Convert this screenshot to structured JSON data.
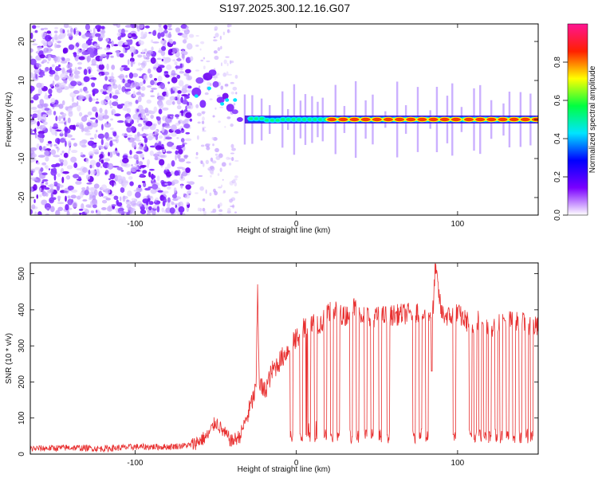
{
  "title": "S197.2025.300.12.16.G07",
  "chart_data": [
    {
      "type": "heatmap",
      "xlabel": "Height of straight line (km)",
      "ylabel": "Frequency (Hz)",
      "xlim": [
        -165,
        150
      ],
      "ylim": [
        -24.5,
        24.5
      ],
      "xticks": [
        -100,
        0,
        100
      ],
      "yticks": [
        -20,
        -10,
        0,
        10,
        20
      ],
      "colorbar": {
        "label": "Normalized spectral amplitude",
        "range": [
          0,
          1
        ],
        "ticks": [
          "0.0",
          "0.2",
          "0.4",
          "0.6",
          "0.8"
        ],
        "colors": [
          "#ffffff",
          "#7a00ff",
          "#0000ff",
          "#00e5ff",
          "#00ff40",
          "#ffff00",
          "#ff2000",
          "#ff1493"
        ]
      },
      "description_points": {
        "noise_region_km": [
          -165,
          -65
        ],
        "signal_onset_km": -65,
        "carrier_freq_hz": 0,
        "strong_segments_km": [
          [
            20,
            100
          ],
          [
            105,
            150
          ]
        ]
      }
    },
    {
      "type": "line",
      "xlabel": "Height of straight line (km)",
      "ylabel": "SNR (10 * v/v)",
      "xlim": [
        -165,
        150
      ],
      "ylim": [
        0,
        530
      ],
      "xticks": [
        -100,
        0,
        100
      ],
      "yticks": [
        0,
        100,
        200,
        300,
        400,
        500
      ],
      "series": [
        {
          "name": "SNR",
          "color": "#e83030",
          "x": [
            -165,
            -140,
            -120,
            -100,
            -80,
            -65,
            -55,
            -50,
            -45,
            -40,
            -35,
            -30,
            -25,
            -24,
            -23,
            -20,
            -15,
            -10,
            -5,
            0,
            5,
            10,
            15,
            20,
            25,
            30,
            35,
            40,
            50,
            60,
            70,
            75,
            80,
            85,
            86,
            90,
            95,
            100,
            105,
            110,
            115,
            120,
            130,
            140,
            150
          ],
          "y": [
            15,
            18,
            15,
            20,
            20,
            25,
            50,
            90,
            60,
            35,
            50,
            110,
            180,
            460,
            200,
            170,
            230,
            260,
            290,
            320,
            350,
            370,
            360,
            390,
            400,
            380,
            410,
            390,
            380,
            385,
            390,
            395,
            380,
            400,
            525,
            390,
            380,
            390,
            370,
            360,
            380,
            350,
            370,
            365,
            350
          ]
        }
      ],
      "dropouts_km": [
        -3,
        3,
        8,
        12,
        18,
        22,
        26,
        34,
        38,
        43,
        47,
        52,
        57,
        73,
        77,
        81,
        98,
        108,
        111,
        114,
        117,
        120,
        124,
        127,
        131,
        135,
        139,
        143,
        146
      ]
    }
  ]
}
